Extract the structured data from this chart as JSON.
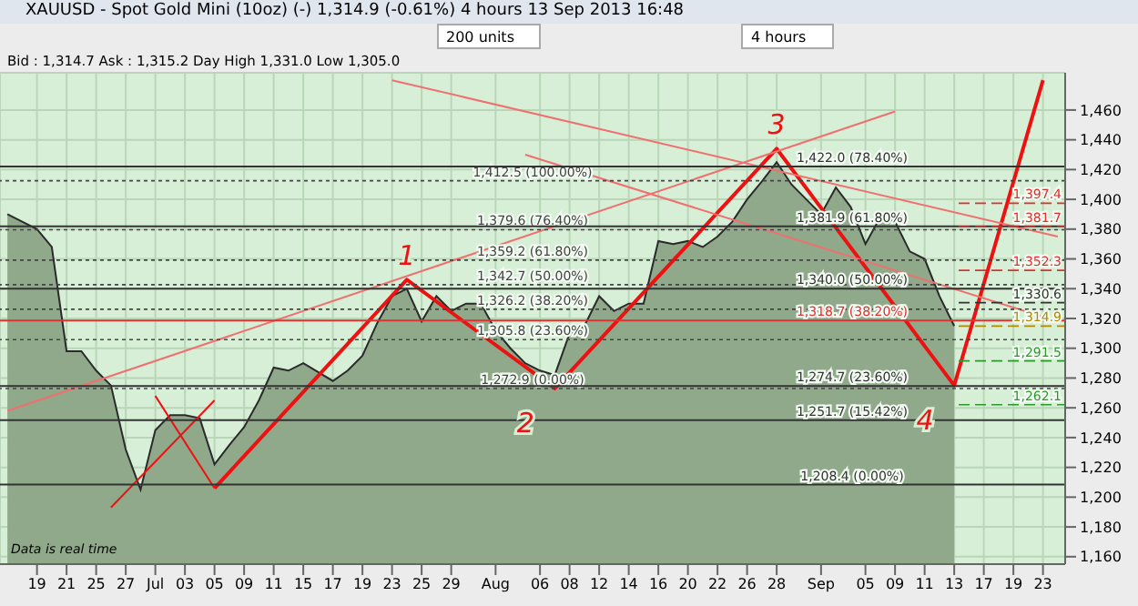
{
  "chart_data": {
    "type": "area",
    "title": "XAUUSD - Spot Gold Mini (10oz) (-)   1,314.9 (-0.61%)   4 hours   13 Sep 2013 16:48",
    "subtitle": "Bid : 1,314.7 Ask : 1,315.2 Day High 1,331.0 Low 1,305.0",
    "annotations": [
      "200 units",
      "4 hours",
      "1",
      "2",
      "3",
      "4",
      "Data is real time"
    ],
    "categories": [
      null,
      null,
      "19",
      null,
      "21",
      null,
      "25",
      null,
      "27",
      null,
      "Jul",
      null,
      "03",
      null,
      "05",
      null,
      "09",
      null,
      "11",
      null,
      "15",
      null,
      "17",
      null,
      "19",
      null,
      "23",
      null,
      "25",
      null,
      "29",
      null,
      null,
      "Aug",
      null,
      null,
      "06",
      null,
      "08",
      null,
      "12",
      null,
      "14",
      null,
      "16",
      null,
      "20",
      null,
      "22",
      null,
      "26",
      null,
      "28",
      null,
      null,
      "Sep",
      null,
      null,
      "05",
      null,
      "09",
      null,
      "11",
      null,
      "13",
      null,
      "17",
      null,
      "19",
      null,
      "23",
      null
    ],
    "series": [
      {
        "color": "#8fa98a",
        "values": [
          1390,
          1385,
          1380,
          1368,
          1298,
          1298,
          1285,
          1275,
          1232,
          1205,
          1245,
          1255,
          1255,
          1253,
          1222,
          1235,
          1247,
          1265,
          1287,
          1285,
          1290,
          1284,
          1278,
          1285,
          1295,
          1317,
          1335,
          1340,
          1318,
          1335,
          1325,
          1330,
          1330,
          1312,
          1300,
          1290,
          1285,
          1282,
          1310,
          1315,
          1335,
          1325,
          1330,
          1330,
          1372,
          1370,
          1372,
          1368,
          1375,
          1385,
          1400,
          1412,
          1425,
          1410,
          1400,
          1390,
          1408,
          1395,
          1370,
          1388,
          1385,
          1365,
          1360,
          1335,
          1315,
          null,
          null,
          null,
          null,
          null,
          null,
          null
        ]
      },
      {
        "type": "line",
        "color": "#ee1111",
        "values": [
          null,
          null,
          null,
          null,
          null,
          null,
          null,
          null,
          null,
          null,
          null,
          null,
          null,
          null,
          1206,
          null,
          null,
          null,
          null,
          null,
          null,
          null,
          null,
          null,
          null,
          null,
          null,
          1346,
          null,
          null,
          null,
          null,
          null,
          null,
          null,
          null,
          null,
          1273,
          null,
          null,
          null,
          null,
          null,
          null,
          null,
          null,
          null,
          null,
          null,
          null,
          null,
          null,
          1434,
          null,
          null,
          null,
          null,
          null,
          null,
          null,
          null,
          null,
          null,
          null,
          1275,
          null,
          null,
          null,
          null,
          null,
          1480,
          null
        ]
      },
      {
        "type": "line",
        "color": "#ee1111",
        "values": [
          null,
          null,
          null,
          null,
          null,
          null,
          null,
          1193,
          null,
          null,
          null,
          null,
          null,
          null,
          1265,
          null,
          null,
          null,
          null,
          null,
          null,
          null,
          null,
          null,
          null,
          null,
          null,
          null,
          null,
          null,
          null,
          null,
          null,
          null,
          null,
          null,
          null,
          null,
          null,
          null,
          null,
          null,
          null,
          null,
          null,
          null,
          null,
          null,
          null,
          null,
          null,
          null,
          null,
          null,
          null,
          null,
          null,
          null,
          null,
          null,
          null,
          null,
          null,
          null,
          null,
          null,
          null,
          null,
          null,
          null,
          null,
          null
        ]
      },
      {
        "type": "line",
        "color": "#ee1111",
        "values": [
          null,
          null,
          null,
          null,
          null,
          null,
          null,
          null,
          null,
          null,
          1268,
          null,
          null,
          null,
          1206,
          null,
          null,
          null,
          null,
          null,
          null,
          null,
          null,
          null,
          null,
          null,
          null,
          null,
          null,
          null,
          null,
          null,
          null,
          null,
          null,
          null,
          null,
          null,
          null,
          null,
          null,
          null,
          null,
          null,
          null,
          null,
          null,
          null,
          null,
          null,
          null,
          null,
          null,
          null,
          null,
          null,
          null,
          null,
          null,
          null,
          null,
          null,
          null,
          null,
          null,
          null,
          null,
          null,
          null,
          null,
          null,
          null
        ]
      },
      {
        "type": "line",
        "color": "#f07070",
        "values": [
          1258,
          null,
          null,
          null,
          null,
          null,
          null,
          null,
          null,
          null,
          null,
          null,
          null,
          null,
          null,
          null,
          null,
          null,
          null,
          null,
          null,
          null,
          null,
          null,
          null,
          null,
          null,
          null,
          null,
          null,
          null,
          null,
          null,
          null,
          null,
          null,
          null,
          null,
          null,
          null,
          null,
          null,
          null,
          null,
          null,
          null,
          null,
          null,
          null,
          null,
          null,
          null,
          null,
          null,
          null,
          null,
          null,
          null,
          null,
          null,
          1459,
          null,
          null,
          null,
          null,
          null,
          null,
          null,
          null,
          null,
          null,
          null
        ]
      },
      {
        "type": "line",
        "color": "#f07070",
        "values": [
          null,
          null,
          null,
          null,
          null,
          null,
          null,
          null,
          null,
          null,
          null,
          null,
          null,
          null,
          null,
          null,
          null,
          null,
          null,
          null,
          null,
          null,
          null,
          null,
          null,
          null,
          1480,
          null,
          null,
          null,
          null,
          null,
          null,
          null,
          null,
          null,
          null,
          null,
          null,
          null,
          null,
          null,
          null,
          null,
          null,
          null,
          null,
          null,
          null,
          null,
          null,
          null,
          null,
          null,
          null,
          null,
          null,
          null,
          null,
          null,
          null,
          null,
          null,
          null,
          null,
          null,
          null,
          null,
          null,
          null,
          null,
          1375
        ]
      },
      {
        "type": "line",
        "color": "#f07070",
        "values": [
          null,
          null,
          null,
          null,
          null,
          null,
          null,
          null,
          null,
          null,
          null,
          null,
          null,
          null,
          null,
          null,
          null,
          null,
          null,
          null,
          null,
          null,
          null,
          null,
          null,
          null,
          null,
          null,
          null,
          null,
          null,
          null,
          null,
          null,
          null,
          1430,
          null,
          null,
          null,
          null,
          null,
          null,
          null,
          null,
          null,
          null,
          null,
          null,
          null,
          null,
          null,
          null,
          null,
          null,
          null,
          null,
          null,
          null,
          null,
          null,
          null,
          null,
          null,
          null,
          null,
          null,
          null,
          null,
          null,
          null,
          null,
          1318
        ]
      }
    ],
    "ylim": [
      1155,
      1485
    ],
    "yticks": [
      {
        "value": 1160,
        "label": "1,160"
      },
      {
        "value": 1180,
        "label": "1,180"
      },
      {
        "value": 1200,
        "label": "1,200"
      },
      {
        "value": 1220,
        "label": "1,220"
      },
      {
        "value": 1240,
        "label": "1,240"
      },
      {
        "value": 1260,
        "label": "1,260"
      },
      {
        "value": 1280,
        "label": "1,280"
      },
      {
        "value": 1300,
        "label": "1,300"
      },
      {
        "value": 1320,
        "label": "1,320"
      },
      {
        "value": 1340,
        "label": "1,340"
      },
      {
        "value": 1360,
        "label": "1,360"
      },
      {
        "value": 1380,
        "label": "1,380"
      },
      {
        "value": 1400,
        "label": "1,400"
      },
      {
        "value": 1420,
        "label": "1,420"
      },
      {
        "value": 1440,
        "label": "1,440"
      },
      {
        "value": 1460,
        "label": "1,460"
      }
    ],
    "grid": true,
    "ref_lines": [
      {
        "axis": "y",
        "value": 1412.5,
        "label": "1,412.5 (100.00%)",
        "color": "#444444",
        "line_style": "dotted"
      },
      {
        "axis": "y",
        "value": 1379.6,
        "label": "1,379.6 (76.40%)",
        "color": "#444444",
        "line_style": "dotted"
      },
      {
        "axis": "y",
        "value": 1359.2,
        "label": "1,359.2 (61.80%)",
        "color": "#444444",
        "line_style": "dotted"
      },
      {
        "axis": "y",
        "value": 1342.7,
        "label": "1,342.7 (50.00%)",
        "color": "#444444",
        "line_style": "dotted"
      },
      {
        "axis": "y",
        "value": 1326.2,
        "label": "1,326.2 (38.20%)",
        "color": "#444444",
        "line_style": "dotted"
      },
      {
        "axis": "y",
        "value": 1305.8,
        "label": "1,305.8 (23.60%)",
        "color": "#444444",
        "line_style": "dotted"
      },
      {
        "axis": "y",
        "value": 1272.9,
        "label": "1,272.9 (0.00%)",
        "color": "#444444",
        "line_style": "dotted"
      },
      {
        "axis": "y",
        "value": 1422.0,
        "label": "1,422.0 (78.40%)",
        "color": "#333333",
        "line_style": "solid"
      },
      {
        "axis": "y",
        "value": 1381.9,
        "label": "1,381.9 (61.80%)",
        "color": "#333333",
        "line_style": "solid"
      },
      {
        "axis": "y",
        "value": 1340.0,
        "label": "1,340.0 (50.00%)",
        "color": "#333333",
        "line_style": "solid"
      },
      {
        "axis": "y",
        "value": 1318.7,
        "label": "1,318.7 (38.20%)",
        "color": "#e03030",
        "line_style": "solid"
      },
      {
        "axis": "y",
        "value": 1274.7,
        "label": "1,274.7 (23.60%)",
        "color": "#333333",
        "line_style": "solid"
      },
      {
        "axis": "y",
        "value": 1251.7,
        "label": "1,251.7 (15.42%)",
        "color": "#333333",
        "line_style": "solid"
      },
      {
        "axis": "y",
        "value": 1208.4,
        "label": "1,208.4 (0.00%)",
        "color": "#333333",
        "line_style": "solid"
      },
      {
        "axis": "y",
        "value": 1397.4,
        "label": "1,397.4",
        "color": "#e03030",
        "line_style": "dashed"
      },
      {
        "axis": "y",
        "value": 1381.7,
        "label": "1,381.7",
        "color": "#e03030",
        "line_style": "dashed"
      },
      {
        "axis": "y",
        "value": 1352.3,
        "label": "1,352.3",
        "color": "#e03030",
        "line_style": "dashed"
      },
      {
        "axis": "y",
        "value": 1330.6,
        "label": "1,330.6",
        "color": "#333333",
        "line_style": "dashed"
      },
      {
        "axis": "y",
        "value": 1314.9,
        "label": "1,314.9",
        "color": "#b08a00",
        "line_style": "dashed"
      },
      {
        "axis": "y",
        "value": 1291.5,
        "label": "1,291.5",
        "color": "#2a9a2a",
        "line_style": "dashed"
      },
      {
        "axis": "y",
        "value": 1262.1,
        "label": "1,262.1",
        "color": "#2a9a2a",
        "line_style": "dashed"
      }
    ]
  }
}
